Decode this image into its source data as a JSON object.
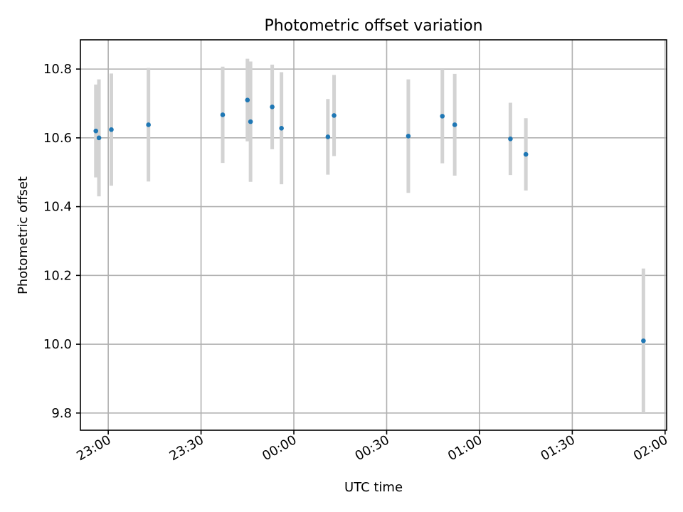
{
  "chart_data": {
    "type": "scatter",
    "title": "Photometric offset variation",
    "xlabel": "UTC time",
    "ylabel": "Photometric offset",
    "grid": true,
    "xlim": [
      "22:51",
      "02:00:30"
    ],
    "ylim": [
      9.75,
      10.885
    ],
    "yticks": [
      9.8,
      10.0,
      10.2,
      10.4,
      10.6,
      10.8
    ],
    "ytick_labels": [
      "9.8",
      "10.0",
      "10.2",
      "10.4",
      "10.6",
      "10.8"
    ],
    "xticks": [
      "23:00",
      "23:30",
      "00:00",
      "00:30",
      "01:00",
      "01:30",
      "02:00"
    ],
    "xtick_labels": [
      "23:00",
      "23:30",
      "00:00",
      "00:30",
      "01:00",
      "01:30",
      "02:00"
    ],
    "marker_color": "#1f77b4",
    "errorbar_color": "#d3d3d3",
    "points": [
      {
        "time": "22:56",
        "y": 10.62,
        "err": 0.135
      },
      {
        "time": "22:57",
        "y": 10.6,
        "err": 0.17
      },
      {
        "time": "23:01",
        "y": 10.624,
        "err": 0.163
      },
      {
        "time": "23:13",
        "y": 10.638,
        "err": 0.165
      },
      {
        "time": "23:37",
        "y": 10.667,
        "err": 0.14
      },
      {
        "time": "23:45",
        "y": 10.71,
        "err": 0.12
      },
      {
        "time": "23:46",
        "y": 10.647,
        "err": 0.175
      },
      {
        "time": "23:53",
        "y": 10.69,
        "err": 0.123
      },
      {
        "time": "23:56",
        "y": 10.628,
        "err": 0.163
      },
      {
        "time": "00:11",
        "y": 10.603,
        "err": 0.11
      },
      {
        "time": "00:13",
        "y": 10.665,
        "err": 0.118
      },
      {
        "time": "00:37",
        "y": 10.605,
        "err": 0.165
      },
      {
        "time": "00:48",
        "y": 10.663,
        "err": 0.137
      },
      {
        "time": "00:52",
        "y": 10.638,
        "err": 0.148
      },
      {
        "time": "01:10",
        "y": 10.597,
        "err": 0.105
      },
      {
        "time": "01:15",
        "y": 10.552,
        "err": 0.105
      },
      {
        "time": "01:53",
        "y": 10.01,
        "err": 0.21
      }
    ]
  }
}
